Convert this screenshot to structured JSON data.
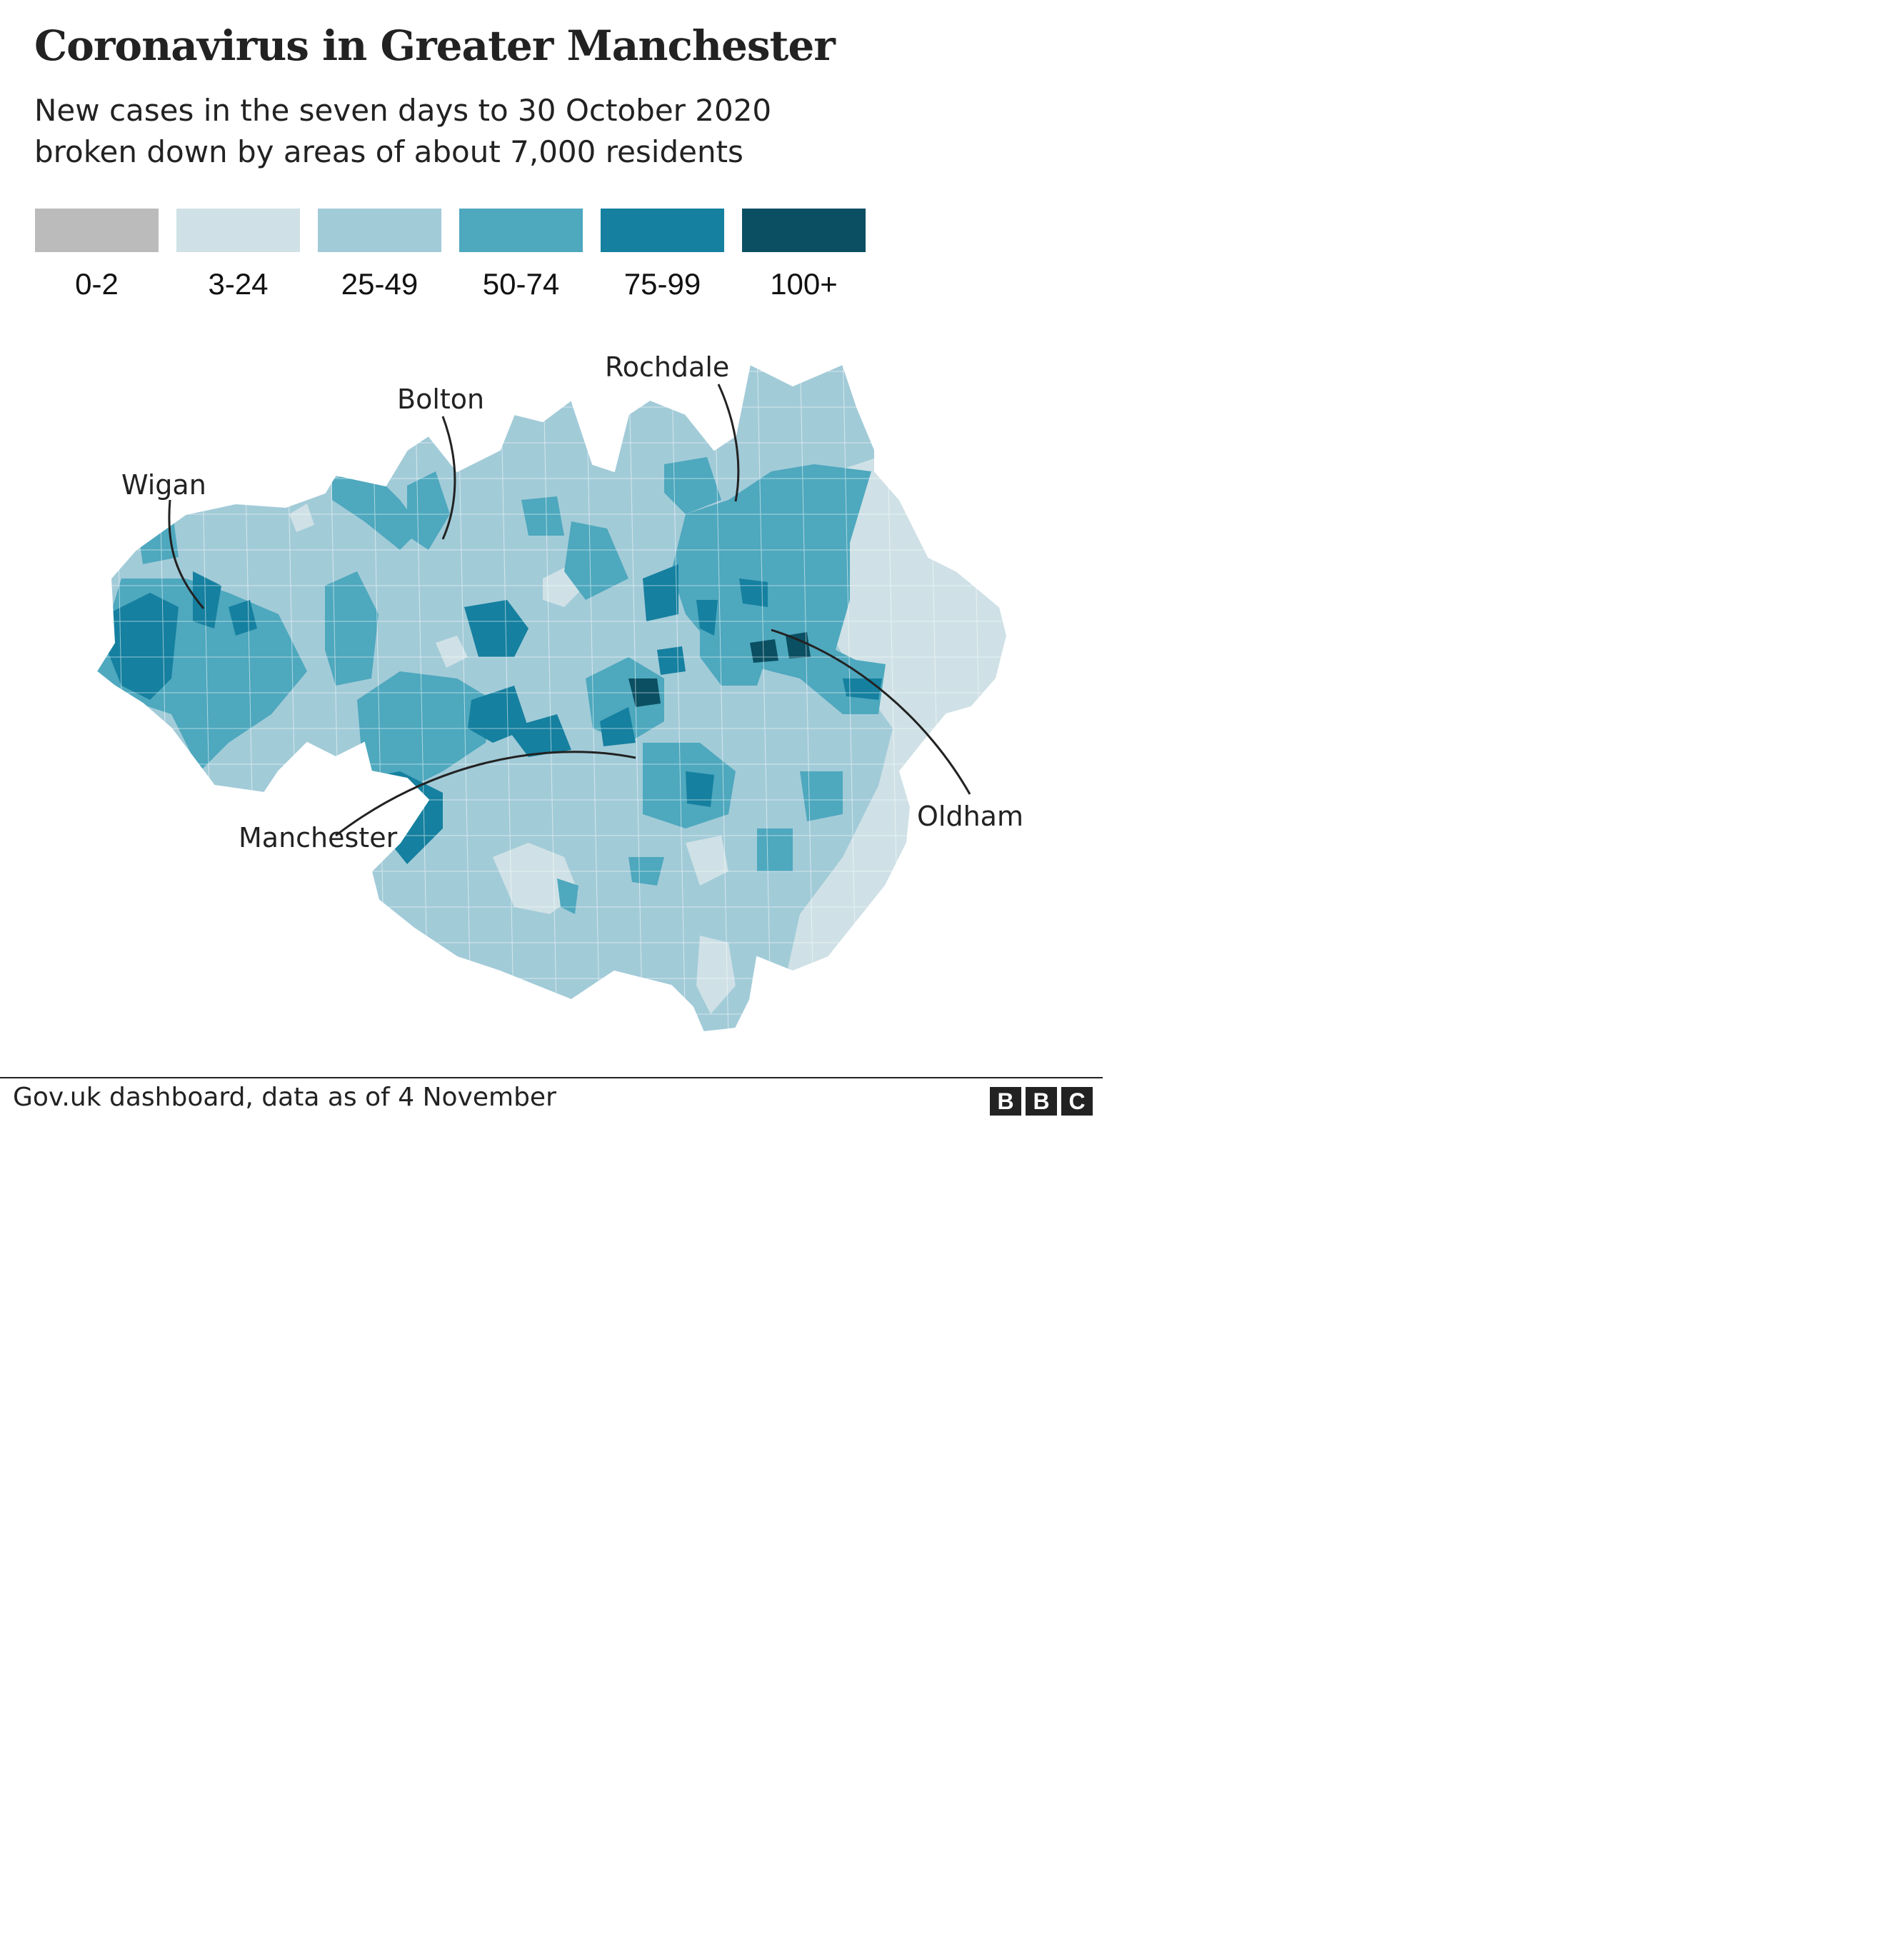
{
  "title": "Coronavirus in Greater Manchester",
  "subtitle": {
    "line1": "New cases in the seven days to 30 October 2020",
    "line2": "broken down by areas of about 7,000 residents"
  },
  "legend": [
    {
      "label": "0-2",
      "color": "#bbbbbb"
    },
    {
      "label": "3-24",
      "color": "#cfe1e6"
    },
    {
      "label": "25-49",
      "color": "#a2cbd8"
    },
    {
      "label": "50-74",
      "color": "#4ea8be"
    },
    {
      "label": "75-99",
      "color": "#15809f"
    },
    {
      "label": "100+",
      "color": "#0a4f62"
    }
  ],
  "places": {
    "wigan": "Wigan",
    "bolton": "Bolton",
    "rochdale": "Rochdale",
    "manchester": "Manchester",
    "oldham": "Oldham"
  },
  "source": "Gov.uk dashboard, data as of 4 November",
  "logo": [
    "B",
    "B",
    "C"
  ]
}
